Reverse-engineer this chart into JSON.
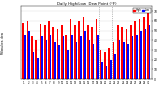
{
  "title": "Daily High/Low Dew Point (°F)",
  "ylabel_left": "Milwaukee, dew",
  "categories": [
    "1",
    "2",
    "3",
    "4",
    "5",
    "6",
    "7",
    "8",
    "9",
    "10",
    "11",
    "12",
    "13",
    "14",
    "15",
    "16",
    "17",
    "18",
    "19",
    "20",
    "21",
    "22",
    "23",
    "24",
    "25",
    "26",
    "27",
    "28",
    "29",
    "30"
  ],
  "high_values": [
    58,
    60,
    44,
    40,
    57,
    56,
    60,
    54,
    52,
    56,
    46,
    62,
    56,
    60,
    64,
    56,
    54,
    62,
    30,
    28,
    32,
    38,
    56,
    54,
    52,
    56,
    60,
    62,
    64,
    70
  ],
  "low_values": [
    46,
    50,
    28,
    22,
    44,
    40,
    46,
    38,
    35,
    44,
    30,
    46,
    38,
    44,
    50,
    40,
    36,
    46,
    18,
    14,
    20,
    26,
    40,
    38,
    36,
    44,
    46,
    50,
    52,
    56
  ],
  "high_color": "#ff0000",
  "low_color": "#0000ff",
  "bg_color": "#ffffff",
  "grid_color": "#dddddd",
  "ylim": [
    0,
    75
  ],
  "yticks": [
    0,
    10,
    20,
    30,
    40,
    50,
    60,
    70
  ],
  "dashed_lines": [
    17.5,
    20.5
  ],
  "legend_high": "High",
  "legend_low": "Low"
}
